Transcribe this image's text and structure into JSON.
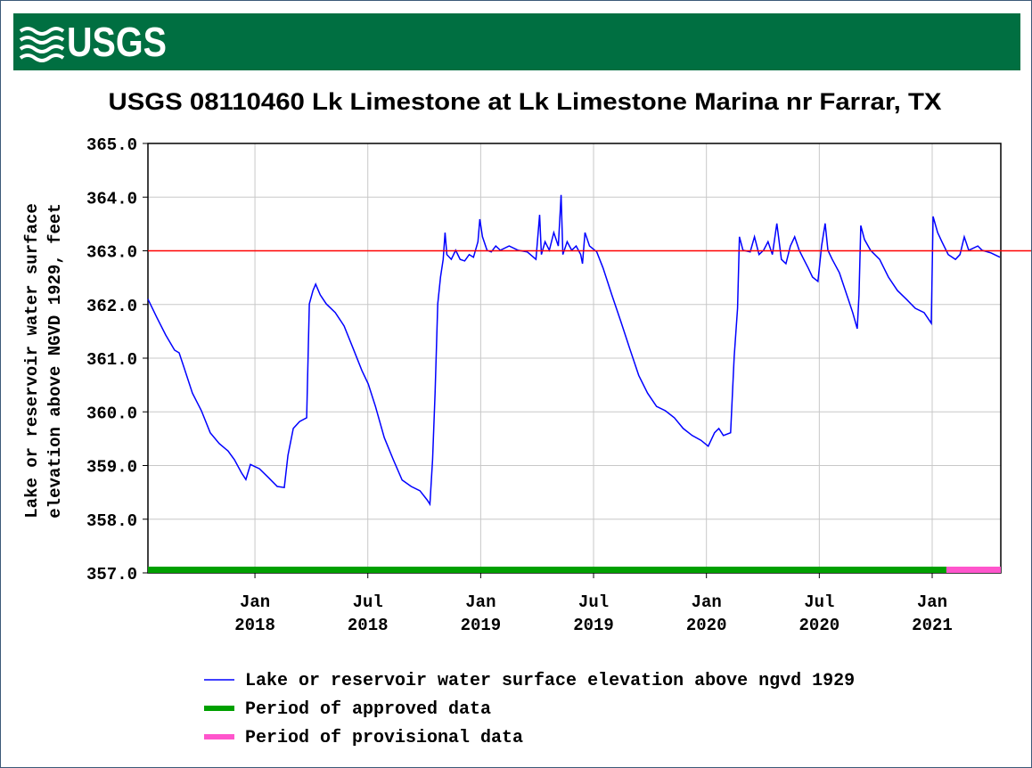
{
  "header": {
    "logo": "USGS"
  },
  "chart_data": {
    "type": "line",
    "title": "USGS 08110460 Lk Limestone at Lk Limestone Marina nr Farrar, TX",
    "ylabel": [
      "Lake or reservoir water surface",
      "elevation above NGVD 1929, feet"
    ],
    "xlim": [
      2017.526,
      2021.304
    ],
    "ylim": [
      357,
      365
    ],
    "yticks": [
      {
        "value": 357,
        "label": "357.0"
      },
      {
        "value": 358,
        "label": "358.0"
      },
      {
        "value": 359,
        "label": "359.0"
      },
      {
        "value": 360,
        "label": "360.0"
      },
      {
        "value": 361,
        "label": "361.0"
      },
      {
        "value": 362,
        "label": "362.0"
      },
      {
        "value": 363,
        "label": "363.0"
      },
      {
        "value": 364,
        "label": "364.0"
      },
      {
        "value": 365,
        "label": "365.0"
      }
    ],
    "xticks": [
      {
        "value": 2018,
        "label": "Jan 2018"
      },
      {
        "value": 2018.5,
        "label": "Jul 2018"
      },
      {
        "value": 2019,
        "label": "Jan 2019"
      },
      {
        "value": 2019.5,
        "label": "Jul 2019"
      },
      {
        "value": 2020,
        "label": "Jan 2020"
      },
      {
        "value": 2020.5,
        "label": "Jul 2020"
      },
      {
        "value": 2021,
        "label": "Jan 2021"
      }
    ],
    "grid": true,
    "reference_line": {
      "value": 363,
      "color": "#ff0000"
    },
    "series": [
      {
        "name": "Lake or reservoir water surface elevation above ngvd 1929",
        "color": "#0000ff",
        "x": [
          2017.526,
          2017.565,
          2017.605,
          2017.644,
          2017.664,
          2017.684,
          2017.723,
          2017.763,
          2017.802,
          2017.842,
          2017.881,
          2017.909,
          2017.941,
          2017.96,
          2017.98,
          2018.02,
          2018.059,
          2018.099,
          2018.13,
          2018.146,
          2018.17,
          2018.198,
          2018.229,
          2018.241,
          2018.257,
          2018.269,
          2018.289,
          2018.316,
          2018.356,
          2018.395,
          2018.435,
          2018.474,
          2018.502,
          2018.534,
          2018.573,
          2018.613,
          2018.652,
          2018.692,
          2018.731,
          2018.763,
          2018.775,
          2018.787,
          2018.798,
          2018.81,
          2018.822,
          2018.834,
          2018.842,
          2018.85,
          2018.87,
          2018.889,
          2018.909,
          2018.929,
          2018.949,
          2018.968,
          2018.988,
          2018.996,
          2019.008,
          2019.028,
          2019.047,
          2019.067,
          2019.087,
          2019.126,
          2019.166,
          2019.206,
          2019.245,
          2019.261,
          2019.269,
          2019.285,
          2019.304,
          2019.324,
          2019.344,
          2019.356,
          2019.364,
          2019.383,
          2019.403,
          2019.423,
          2019.443,
          2019.451,
          2019.462,
          2019.482,
          2019.514,
          2019.542,
          2019.581,
          2019.621,
          2019.66,
          2019.7,
          2019.739,
          2019.779,
          2019.818,
          2019.858,
          2019.897,
          2019.937,
          2019.976,
          2020.008,
          2020.036,
          2020.055,
          2020.075,
          2020.107,
          2020.123,
          2020.138,
          2020.146,
          2020.162,
          2020.194,
          2020.213,
          2020.233,
          2020.253,
          2020.273,
          2020.292,
          2020.312,
          2020.332,
          2020.352,
          2020.372,
          2020.391,
          2020.411,
          2020.431,
          2020.451,
          2020.47,
          2020.494,
          2020.51,
          2020.526,
          2020.538,
          2020.557,
          2020.589,
          2020.628,
          2020.648,
          2020.668,
          2020.676,
          2020.684,
          2020.7,
          2020.727,
          2020.767,
          2020.806,
          2020.846,
          2020.885,
          2020.925,
          2020.964,
          2020.996,
          2021.004,
          2021.024,
          2021.043,
          2021.071,
          2021.103,
          2021.123,
          2021.142,
          2021.162,
          2021.202,
          2021.221,
          2021.261,
          2021.3
        ],
        "values": [
          362.1,
          361.76,
          361.43,
          361.15,
          361.1,
          360.85,
          360.35,
          360.02,
          359.61,
          359.41,
          359.27,
          359.11,
          358.86,
          358.74,
          359.02,
          358.94,
          358.78,
          358.61,
          358.59,
          359.19,
          359.69,
          359.82,
          359.89,
          362.01,
          362.26,
          362.38,
          362.18,
          362.01,
          361.85,
          361.6,
          361.18,
          360.77,
          360.52,
          360.1,
          359.52,
          359.11,
          358.73,
          358.61,
          358.53,
          358.36,
          358.28,
          359.11,
          360.35,
          362.01,
          362.51,
          362.84,
          363.34,
          362.93,
          362.84,
          363.01,
          362.84,
          362.81,
          362.93,
          362.88,
          363.17,
          363.59,
          363.26,
          363.01,
          362.98,
          363.09,
          363.01,
          363.09,
          363.01,
          362.98,
          362.84,
          363.67,
          362.93,
          363.17,
          363.01,
          363.34,
          363.09,
          364.04,
          362.93,
          363.17,
          363.01,
          363.09,
          362.93,
          362.76,
          363.34,
          363.09,
          362.98,
          362.68,
          362.18,
          361.68,
          361.18,
          360.68,
          360.35,
          360.1,
          360.02,
          359.89,
          359.69,
          359.56,
          359.47,
          359.36,
          359.61,
          359.69,
          359.56,
          359.61,
          361.02,
          361.93,
          363.26,
          363.01,
          362.98,
          363.26,
          362.93,
          363.01,
          363.17,
          362.93,
          363.51,
          362.84,
          362.76,
          363.09,
          363.26,
          363.01,
          362.84,
          362.68,
          362.51,
          362.43,
          363.09,
          363.51,
          363.01,
          362.84,
          362.59,
          362.1,
          361.85,
          361.55,
          362.18,
          363.47,
          363.21,
          363.01,
          362.84,
          362.51,
          362.26,
          362.1,
          361.93,
          361.85,
          361.65,
          363.64,
          363.34,
          363.17,
          362.93,
          362.84,
          362.93,
          363.26,
          363.01,
          363.09,
          363.01,
          362.96,
          362.88
        ]
      }
    ],
    "periods": [
      {
        "name": "Period of approved data",
        "color": "#00a000",
        "start": 2017.526,
        "end": 2021.063
      },
      {
        "name": "Period of provisional data",
        "color": "#ff55cc",
        "start": 2021.063,
        "end": 2021.304
      }
    ]
  }
}
